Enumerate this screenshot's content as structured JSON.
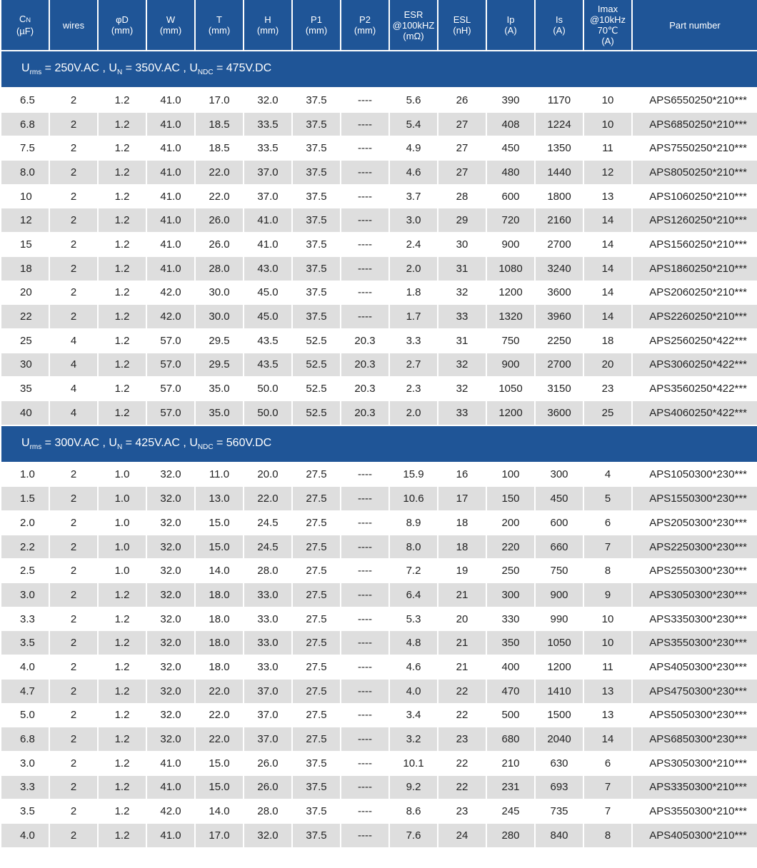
{
  "colors": {
    "header_bg": "#1f5597",
    "row_alt": "#dedede",
    "text": "#222222"
  },
  "header": {
    "cn_main": "C",
    "cn_sub": "N",
    "cn_unit": "(µF)",
    "wires": "wires",
    "phiD": "φD",
    "phiD_unit": "(mm)",
    "W": "W",
    "W_unit": "(mm)",
    "T": "T",
    "T_unit": "(mm)",
    "H": "H",
    "H_unit": "(mm)",
    "P1": "P1",
    "P1_unit": "(mm)",
    "P2": "P2",
    "P2_unit": "(mm)",
    "esr_l1": "ESR",
    "esr_l2": "@100kHZ",
    "esr_l3": "(mΩ)",
    "esl": "ESL",
    "esl_unit": "(nH)",
    "ip": "Ip",
    "ip_unit": "(A)",
    "is": "Is",
    "is_unit": "(A)",
    "imax_l1": "Imax",
    "imax_l2": "@10kHz",
    "imax_l3": "70℃",
    "imax_l4": "(A)",
    "part": "Part number"
  },
  "sections": [
    {
      "band": {
        "u1": "U",
        "u1_sub": "rms",
        "u1_val": " = 250V.AC , ",
        "u2": "U",
        "u2_sub": "N",
        "u2_val": " = 350V.AC , ",
        "u3": "U",
        "u3_sub": "NDC",
        "u3_val": " = 475V.DC"
      },
      "rows": [
        [
          "6.5",
          "2",
          "1.2",
          "41.0",
          "17.0",
          "32.0",
          "37.5",
          "----",
          "5.6",
          "26",
          "390",
          "1170",
          "10",
          "APS6550250*210***"
        ],
        [
          "6.8",
          "2",
          "1.2",
          "41.0",
          "18.5",
          "33.5",
          "37.5",
          "----",
          "5.4",
          "27",
          "408",
          "1224",
          "10",
          "APS6850250*210***"
        ],
        [
          "7.5",
          "2",
          "1.2",
          "41.0",
          "18.5",
          "33.5",
          "37.5",
          "----",
          "4.9",
          "27",
          "450",
          "1350",
          "11",
          "APS7550250*210***"
        ],
        [
          "8.0",
          "2",
          "1.2",
          "41.0",
          "22.0",
          "37.0",
          "37.5",
          "----",
          "4.6",
          "27",
          "480",
          "1440",
          "12",
          "APS8050250*210***"
        ],
        [
          "10",
          "2",
          "1.2",
          "41.0",
          "22.0",
          "37.0",
          "37.5",
          "----",
          "3.7",
          "28",
          "600",
          "1800",
          "13",
          "APS1060250*210***"
        ],
        [
          "12",
          "2",
          "1.2",
          "41.0",
          "26.0",
          "41.0",
          "37.5",
          "----",
          "3.0",
          "29",
          "720",
          "2160",
          "14",
          "APS1260250*210***"
        ],
        [
          "15",
          "2",
          "1.2",
          "41.0",
          "26.0",
          "41.0",
          "37.5",
          "----",
          "2.4",
          "30",
          "900",
          "2700",
          "14",
          "APS1560250*210***"
        ],
        [
          "18",
          "2",
          "1.2",
          "41.0",
          "28.0",
          "43.0",
          "37.5",
          "----",
          "2.0",
          "31",
          "1080",
          "3240",
          "14",
          "APS1860250*210***"
        ],
        [
          "20",
          "2",
          "1.2",
          "42.0",
          "30.0",
          "45.0",
          "37.5",
          "----",
          "1.8",
          "32",
          "1200",
          "3600",
          "14",
          "APS2060250*210***"
        ],
        [
          "22",
          "2",
          "1.2",
          "42.0",
          "30.0",
          "45.0",
          "37.5",
          "----",
          "1.7",
          "33",
          "1320",
          "3960",
          "14",
          "APS2260250*210***"
        ],
        [
          "25",
          "4",
          "1.2",
          "57.0",
          "29.5",
          "43.5",
          "52.5",
          "20.3",
          "3.3",
          "31",
          "750",
          "2250",
          "18",
          "APS2560250*422***"
        ],
        [
          "30",
          "4",
          "1.2",
          "57.0",
          "29.5",
          "43.5",
          "52.5",
          "20.3",
          "2.7",
          "32",
          "900",
          "2700",
          "20",
          "APS3060250*422***"
        ],
        [
          "35",
          "4",
          "1.2",
          "57.0",
          "35.0",
          "50.0",
          "52.5",
          "20.3",
          "2.3",
          "32",
          "1050",
          "3150",
          "23",
          "APS3560250*422***"
        ],
        [
          "40",
          "4",
          "1.2",
          "57.0",
          "35.0",
          "50.0",
          "52.5",
          "20.3",
          "2.0",
          "33",
          "1200",
          "3600",
          "25",
          "APS4060250*422***"
        ]
      ]
    },
    {
      "band": {
        "u1": "U",
        "u1_sub": "rms",
        "u1_val": " = 300V.AC , ",
        "u2": "U",
        "u2_sub": "N",
        "u2_val": " = 425V.AC , ",
        "u3": "U",
        "u3_sub": "NDC",
        "u3_val": " = 560V.DC"
      },
      "rows": [
        [
          "1.0",
          "2",
          "1.0",
          "32.0",
          "11.0",
          "20.0",
          "27.5",
          "----",
          "15.9",
          "16",
          "100",
          "300",
          "4",
          "APS1050300*230***"
        ],
        [
          "1.5",
          "2",
          "1.0",
          "32.0",
          "13.0",
          "22.0",
          "27.5",
          "----",
          "10.6",
          "17",
          "150",
          "450",
          "5",
          "APS1550300*230***"
        ],
        [
          "2.0",
          "2",
          "1.0",
          "32.0",
          "15.0",
          "24.5",
          "27.5",
          "----",
          "8.9",
          "18",
          "200",
          "600",
          "6",
          "APS2050300*230***"
        ],
        [
          "2.2",
          "2",
          "1.0",
          "32.0",
          "15.0",
          "24.5",
          "27.5",
          "----",
          "8.0",
          "18",
          "220",
          "660",
          "7",
          "APS2250300*230***"
        ],
        [
          "2.5",
          "2",
          "1.0",
          "32.0",
          "14.0",
          "28.0",
          "27.5",
          "----",
          "7.2",
          "19",
          "250",
          "750",
          "8",
          "APS2550300*230***"
        ],
        [
          "3.0",
          "2",
          "1.2",
          "32.0",
          "18.0",
          "33.0",
          "27.5",
          "----",
          "6.4",
          "21",
          "300",
          "900",
          "9",
          "APS3050300*230***"
        ],
        [
          "3.3",
          "2",
          "1.2",
          "32.0",
          "18.0",
          "33.0",
          "27.5",
          "----",
          "5.3",
          "20",
          "330",
          "990",
          "10",
          "APS3350300*230***"
        ],
        [
          "3.5",
          "2",
          "1.2",
          "32.0",
          "18.0",
          "33.0",
          "27.5",
          "----",
          "4.8",
          "21",
          "350",
          "1050",
          "10",
          "APS3550300*230***"
        ],
        [
          "4.0",
          "2",
          "1.2",
          "32.0",
          "18.0",
          "33.0",
          "27.5",
          "----",
          "4.6",
          "21",
          "400",
          "1200",
          "11",
          "APS4050300*230***"
        ],
        [
          "4.7",
          "2",
          "1.2",
          "32.0",
          "22.0",
          "37.0",
          "27.5",
          "----",
          "4.0",
          "22",
          "470",
          "1410",
          "13",
          "APS4750300*230***"
        ],
        [
          "5.0",
          "2",
          "1.2",
          "32.0",
          "22.0",
          "37.0",
          "27.5",
          "----",
          "3.4",
          "22",
          "500",
          "1500",
          "13",
          "APS5050300*230***"
        ],
        [
          "6.8",
          "2",
          "1.2",
          "32.0",
          "22.0",
          "37.0",
          "27.5",
          "----",
          "3.2",
          "23",
          "680",
          "2040",
          "14",
          "APS6850300*230***"
        ],
        [
          "3.0",
          "2",
          "1.2",
          "41.0",
          "15.0",
          "26.0",
          "37.5",
          "----",
          "10.1",
          "22",
          "210",
          "630",
          "6",
          "APS3050300*210***"
        ],
        [
          "3.3",
          "2",
          "1.2",
          "41.0",
          "15.0",
          "26.0",
          "37.5",
          "----",
          "9.2",
          "22",
          "231",
          "693",
          "7",
          "APS3350300*210***"
        ],
        [
          "3.5",
          "2",
          "1.2",
          "42.0",
          "14.0",
          "28.0",
          "37.5",
          "----",
          "8.6",
          "23",
          "245",
          "735",
          "7",
          "APS3550300*210***"
        ],
        [
          "4.0",
          "2",
          "1.2",
          "41.0",
          "17.0",
          "32.0",
          "37.5",
          "----",
          "7.6",
          "24",
          "280",
          "840",
          "8",
          "APS4050300*210***"
        ]
      ]
    }
  ]
}
